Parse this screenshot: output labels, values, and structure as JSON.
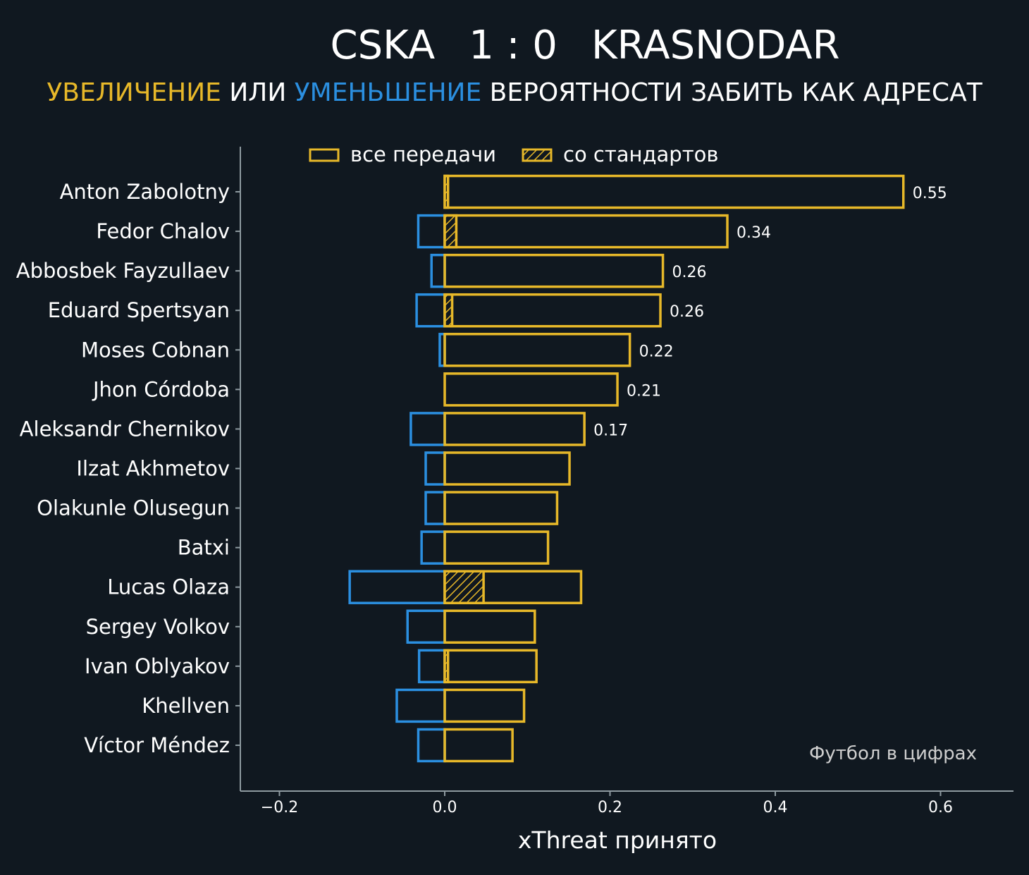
{
  "chart_data": {
    "type": "bar",
    "orientation": "horizontal",
    "title": {
      "home": "CSKA",
      "score": "1 : 0",
      "away": "KRASNODAR"
    },
    "subtitle": {
      "increase": "УВЕЛИЧЕНИЕ",
      "or": "ИЛИ",
      "decrease": "УМЕНЬШЕНИЕ",
      "rest": "ВЕРОЯТНОСТИ ЗАБИТЬ КАК АДРЕСАТ"
    },
    "legend": {
      "all": "все передачи",
      "set_pieces": "со стандартов",
      "position": "top"
    },
    "xlabel": "xThreat принято",
    "xlim": [
      -0.25,
      0.69
    ],
    "xticks": [
      -0.2,
      0.0,
      0.2,
      0.4,
      0.6
    ],
    "xtick_labels": [
      "−0.2",
      "0.0",
      "0.2",
      "0.4",
      "0.6"
    ],
    "watermark": "Футбол в цифрах",
    "colors": {
      "background": "#101820",
      "positive": "#e7b829",
      "negative": "#2b8fe0",
      "axis": "#8e9aa0"
    },
    "categories": [
      "Anton Zabolotny",
      "Fedor Chalov",
      "Abbosbek Fayzullaev",
      "Eduard Spertsyan",
      "Moses Cobnan",
      "Jhon Córdoba",
      "Aleksandr Chernikov",
      "Ilzat Akhmetov",
      "Olakunle Olusegun",
      "Batxi",
      "Lucas Olaza",
      "Sergey Volkov",
      "Ivan Oblyakov",
      "Khellven",
      "Víctor Méndez"
    ],
    "series": [
      {
        "name": "positive",
        "values": [
          0.555,
          0.342,
          0.264,
          0.261,
          0.224,
          0.209,
          0.169,
          0.151,
          0.136,
          0.125,
          0.165,
          0.109,
          0.111,
          0.096,
          0.082
        ]
      },
      {
        "name": "negative",
        "values": [
          0.0,
          -0.032,
          -0.016,
          -0.034,
          -0.006,
          0.0,
          -0.041,
          -0.023,
          -0.023,
          -0.028,
          -0.115,
          -0.045,
          -0.031,
          -0.058,
          -0.032
        ]
      },
      {
        "name": "set_pieces",
        "values": [
          0.004,
          0.014,
          0.0,
          0.009,
          0.0,
          0.0,
          0.0,
          0.0,
          0.0,
          0.0,
          0.047,
          0.0,
          0.004,
          0.0,
          0.0
        ]
      }
    ],
    "value_labels": [
      "0.55",
      "0.34",
      "0.26",
      "0.26",
      "0.22",
      "0.21",
      "0.17",
      "",
      "",
      "",
      "",
      "",
      "",
      "",
      ""
    ]
  }
}
